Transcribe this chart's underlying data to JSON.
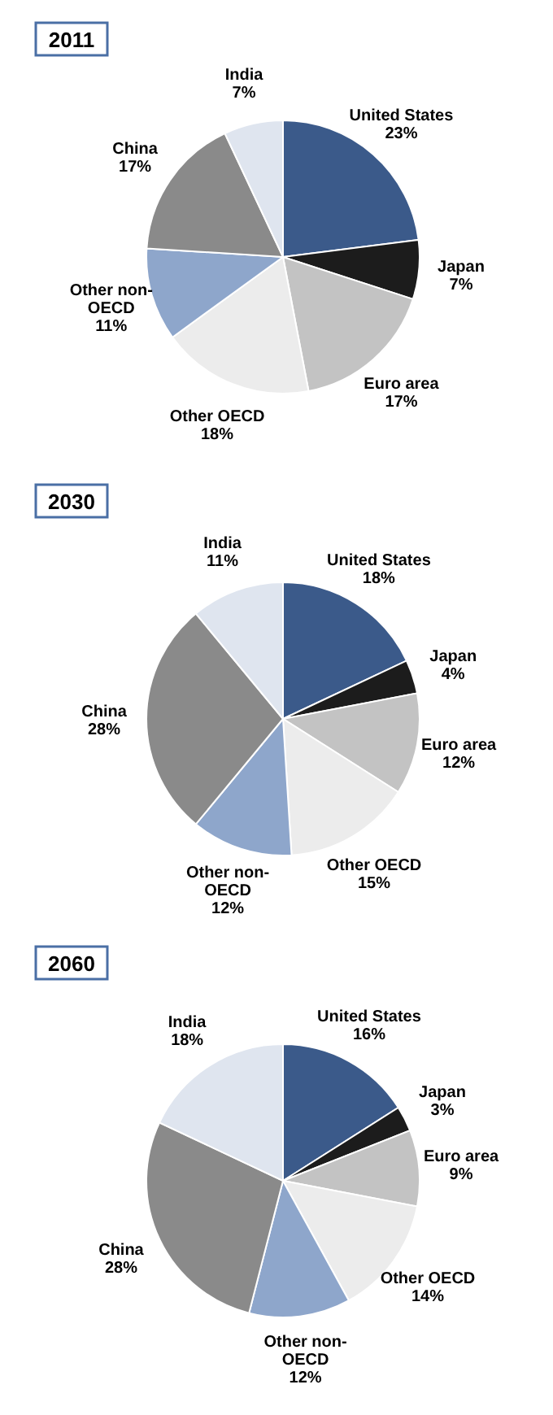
{
  "chart_data": [
    {
      "type": "pie",
      "title": "2011",
      "categories": [
        "United States",
        "Japan",
        "Euro area",
        "Other OECD",
        "Other non-OECD",
        "China",
        "India"
      ],
      "values": [
        23,
        7,
        17,
        18,
        11,
        17,
        7
      ],
      "value_labels": [
        "23%",
        "7%",
        "17%",
        "18%",
        "11%",
        "17%",
        "7%"
      ],
      "colors": [
        "#3b5a8a",
        "#1c1c1c",
        "#c3c3c3",
        "#ececec",
        "#8ea6cb",
        "#8a8a8a",
        "#dfe5ef"
      ]
    },
    {
      "type": "pie",
      "title": "2030",
      "categories": [
        "United States",
        "Japan",
        "Euro area",
        "Other OECD",
        "Other non-OECD",
        "China",
        "India"
      ],
      "values": [
        18,
        4,
        12,
        15,
        12,
        28,
        11
      ],
      "value_labels": [
        "18%",
        "4%",
        "12%",
        "15%",
        "12%",
        "28%",
        "11%"
      ],
      "colors": [
        "#3b5a8a",
        "#1c1c1c",
        "#c3c3c3",
        "#ececec",
        "#8ea6cb",
        "#8a8a8a",
        "#dfe5ef"
      ]
    },
    {
      "type": "pie",
      "title": "2060",
      "categories": [
        "United States",
        "Japan",
        "Euro area",
        "Other OECD",
        "Other non-OECD",
        "China",
        "India"
      ],
      "values": [
        16,
        3,
        9,
        14,
        12,
        28,
        18
      ],
      "value_labels": [
        "16%",
        "3%",
        "9%",
        "14%",
        "12%",
        "28%",
        "18%"
      ],
      "colors": [
        "#3b5a8a",
        "#1c1c1c",
        "#c3c3c3",
        "#ececec",
        "#8ea6cb",
        "#8a8a8a",
        "#dfe5ef"
      ]
    }
  ]
}
